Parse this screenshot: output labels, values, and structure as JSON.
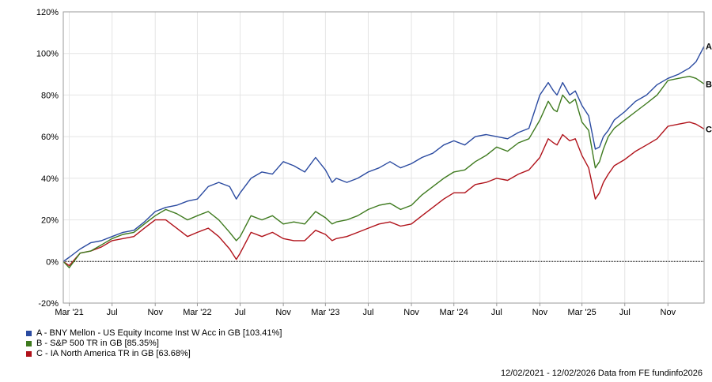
{
  "chart_data": {
    "type": "line",
    "xlabel": "",
    "ylabel": "",
    "x_range": [
      "2021-02-12",
      "2026-02-12"
    ],
    "ylim": [
      -20,
      120
    ],
    "y_ticks": [
      -20,
      0,
      20,
      40,
      60,
      80,
      100,
      120
    ],
    "y_tick_labels": [
      "-20%",
      "0%",
      "20%",
      "40%",
      "60%",
      "80%",
      "100%",
      "120%"
    ],
    "x_ticks": [
      {
        "date": "2021-03-01",
        "label": "Mar '21"
      },
      {
        "date": "2021-07-01",
        "label": "Jul"
      },
      {
        "date": "2021-11-01",
        "label": "Nov"
      },
      {
        "date": "2022-03-01",
        "label": "Mar '22"
      },
      {
        "date": "2022-07-01",
        "label": "Jul"
      },
      {
        "date": "2022-11-01",
        "label": "Nov"
      },
      {
        "date": "2023-03-01",
        "label": "Mar '23"
      },
      {
        "date": "2023-07-01",
        "label": "Jul"
      },
      {
        "date": "2023-11-01",
        "label": "Nov"
      },
      {
        "date": "2024-03-01",
        "label": "Mar '24"
      },
      {
        "date": "2024-07-01",
        "label": "Jul"
      },
      {
        "date": "2024-11-01",
        "label": "Nov"
      },
      {
        "date": "2025-03-01",
        "label": "Mar '25"
      },
      {
        "date": "2025-07-01",
        "label": "Jul"
      },
      {
        "date": "2025-11-01",
        "label": "Nov"
      }
    ],
    "grid": true,
    "zero_line": "dotted",
    "legend_position": "bottom-left",
    "series": [
      {
        "name": "A - BNY Mellon - US Equity Income Inst W Acc in GB [103.41%]",
        "end_label": "A",
        "color": "#2a4aa0",
        "points": [
          [
            "2021-02-12",
            0
          ],
          [
            "2021-03-01",
            2
          ],
          [
            "2021-04-01",
            6
          ],
          [
            "2021-05-01",
            9
          ],
          [
            "2021-06-01",
            10
          ],
          [
            "2021-07-01",
            12
          ],
          [
            "2021-08-01",
            14
          ],
          [
            "2021-09-01",
            15
          ],
          [
            "2021-10-01",
            19
          ],
          [
            "2021-11-01",
            24
          ],
          [
            "2021-12-01",
            26
          ],
          [
            "2022-01-01",
            27
          ],
          [
            "2022-02-01",
            29
          ],
          [
            "2022-03-01",
            30
          ],
          [
            "2022-04-01",
            36
          ],
          [
            "2022-05-01",
            38
          ],
          [
            "2022-06-01",
            36
          ],
          [
            "2022-06-20",
            30
          ],
          [
            "2022-07-01",
            33
          ],
          [
            "2022-08-01",
            40
          ],
          [
            "2022-09-01",
            43
          ],
          [
            "2022-10-01",
            42
          ],
          [
            "2022-11-01",
            48
          ],
          [
            "2022-12-01",
            46
          ],
          [
            "2023-01-01",
            43
          ],
          [
            "2023-02-01",
            50
          ],
          [
            "2023-03-01",
            44
          ],
          [
            "2023-03-20",
            38
          ],
          [
            "2023-04-01",
            40
          ],
          [
            "2023-05-01",
            38
          ],
          [
            "2023-06-01",
            40
          ],
          [
            "2023-07-01",
            43
          ],
          [
            "2023-08-01",
            45
          ],
          [
            "2023-09-01",
            48
          ],
          [
            "2023-10-01",
            45
          ],
          [
            "2023-11-01",
            47
          ],
          [
            "2023-12-01",
            50
          ],
          [
            "2024-01-01",
            52
          ],
          [
            "2024-02-01",
            56
          ],
          [
            "2024-03-01",
            58
          ],
          [
            "2024-04-01",
            56
          ],
          [
            "2024-05-01",
            60
          ],
          [
            "2024-06-01",
            61
          ],
          [
            "2024-07-01",
            60
          ],
          [
            "2024-08-01",
            59
          ],
          [
            "2024-09-01",
            62
          ],
          [
            "2024-10-01",
            64
          ],
          [
            "2024-11-01",
            80
          ],
          [
            "2024-11-25",
            86
          ],
          [
            "2024-12-10",
            82
          ],
          [
            "2024-12-20",
            80
          ],
          [
            "2025-01-05",
            86
          ],
          [
            "2025-01-25",
            80
          ],
          [
            "2025-02-10",
            82
          ],
          [
            "2025-03-01",
            75
          ],
          [
            "2025-03-20",
            70
          ],
          [
            "2025-04-08",
            54
          ],
          [
            "2025-04-20",
            55
          ],
          [
            "2025-05-01",
            60
          ],
          [
            "2025-05-15",
            63
          ],
          [
            "2025-06-01",
            68
          ],
          [
            "2025-07-01",
            72
          ],
          [
            "2025-08-01",
            77
          ],
          [
            "2025-09-01",
            80
          ],
          [
            "2025-10-01",
            85
          ],
          [
            "2025-11-01",
            88
          ],
          [
            "2025-12-01",
            90
          ],
          [
            "2026-01-01",
            93
          ],
          [
            "2026-01-20",
            96
          ],
          [
            "2026-02-12",
            103.41
          ]
        ]
      },
      {
        "name": "B - S&P 500 TR in GB [85.35%]",
        "end_label": "B",
        "color": "#3e7a1e",
        "points": [
          [
            "2021-02-12",
            0
          ],
          [
            "2021-03-01",
            -3
          ],
          [
            "2021-04-01",
            4
          ],
          [
            "2021-05-01",
            5
          ],
          [
            "2021-06-01",
            8
          ],
          [
            "2021-07-01",
            11
          ],
          [
            "2021-08-01",
            13
          ],
          [
            "2021-09-01",
            14
          ],
          [
            "2021-10-01",
            18
          ],
          [
            "2021-11-01",
            22
          ],
          [
            "2021-12-01",
            25
          ],
          [
            "2022-01-01",
            23
          ],
          [
            "2022-02-01",
            20
          ],
          [
            "2022-03-01",
            22
          ],
          [
            "2022-04-01",
            24
          ],
          [
            "2022-05-01",
            20
          ],
          [
            "2022-06-01",
            14
          ],
          [
            "2022-06-20",
            10
          ],
          [
            "2022-07-01",
            12
          ],
          [
            "2022-08-01",
            22
          ],
          [
            "2022-09-01",
            20
          ],
          [
            "2022-10-01",
            22
          ],
          [
            "2022-11-01",
            18
          ],
          [
            "2022-12-01",
            19
          ],
          [
            "2023-01-01",
            18
          ],
          [
            "2023-02-01",
            24
          ],
          [
            "2023-03-01",
            21
          ],
          [
            "2023-03-20",
            18
          ],
          [
            "2023-04-01",
            19
          ],
          [
            "2023-05-01",
            20
          ],
          [
            "2023-06-01",
            22
          ],
          [
            "2023-07-01",
            25
          ],
          [
            "2023-08-01",
            27
          ],
          [
            "2023-09-01",
            28
          ],
          [
            "2023-10-01",
            25
          ],
          [
            "2023-11-01",
            27
          ],
          [
            "2023-12-01",
            32
          ],
          [
            "2024-01-01",
            36
          ],
          [
            "2024-02-01",
            40
          ],
          [
            "2024-03-01",
            43
          ],
          [
            "2024-04-01",
            44
          ],
          [
            "2024-05-01",
            48
          ],
          [
            "2024-06-01",
            51
          ],
          [
            "2024-07-01",
            55
          ],
          [
            "2024-08-01",
            53
          ],
          [
            "2024-09-01",
            57
          ],
          [
            "2024-10-01",
            59
          ],
          [
            "2024-11-01",
            68
          ],
          [
            "2024-11-25",
            77
          ],
          [
            "2024-12-10",
            73
          ],
          [
            "2024-12-20",
            72
          ],
          [
            "2025-01-05",
            80
          ],
          [
            "2025-01-25",
            76
          ],
          [
            "2025-02-10",
            78
          ],
          [
            "2025-03-01",
            67
          ],
          [
            "2025-03-20",
            63
          ],
          [
            "2025-04-08",
            45
          ],
          [
            "2025-04-20",
            48
          ],
          [
            "2025-05-01",
            54
          ],
          [
            "2025-05-15",
            60
          ],
          [
            "2025-06-01",
            64
          ],
          [
            "2025-07-01",
            68
          ],
          [
            "2025-08-01",
            72
          ],
          [
            "2025-09-01",
            76
          ],
          [
            "2025-10-01",
            80
          ],
          [
            "2025-11-01",
            87
          ],
          [
            "2025-12-01",
            88
          ],
          [
            "2026-01-01",
            89
          ],
          [
            "2026-01-20",
            88
          ],
          [
            "2026-02-12",
            85.35
          ]
        ]
      },
      {
        "name": "C - IA North America TR in GB [63.68%]",
        "end_label": "C",
        "color": "#b0121a",
        "points": [
          [
            "2021-02-12",
            0
          ],
          [
            "2021-03-01",
            -2
          ],
          [
            "2021-04-01",
            4
          ],
          [
            "2021-05-01",
            5
          ],
          [
            "2021-06-01",
            7
          ],
          [
            "2021-07-01",
            10
          ],
          [
            "2021-08-01",
            11
          ],
          [
            "2021-09-01",
            12
          ],
          [
            "2021-10-01",
            16
          ],
          [
            "2021-11-01",
            20
          ],
          [
            "2021-12-01",
            20
          ],
          [
            "2022-01-01",
            16
          ],
          [
            "2022-02-01",
            12
          ],
          [
            "2022-03-01",
            14
          ],
          [
            "2022-04-01",
            16
          ],
          [
            "2022-05-01",
            12
          ],
          [
            "2022-06-01",
            6
          ],
          [
            "2022-06-20",
            1
          ],
          [
            "2022-07-01",
            4
          ],
          [
            "2022-08-01",
            14
          ],
          [
            "2022-09-01",
            12
          ],
          [
            "2022-10-01",
            14
          ],
          [
            "2022-11-01",
            11
          ],
          [
            "2022-12-01",
            10
          ],
          [
            "2023-01-01",
            10
          ],
          [
            "2023-02-01",
            15
          ],
          [
            "2023-03-01",
            13
          ],
          [
            "2023-03-20",
            10
          ],
          [
            "2023-04-01",
            11
          ],
          [
            "2023-05-01",
            12
          ],
          [
            "2023-06-01",
            14
          ],
          [
            "2023-07-01",
            16
          ],
          [
            "2023-08-01",
            18
          ],
          [
            "2023-09-01",
            19
          ],
          [
            "2023-10-01",
            17
          ],
          [
            "2023-11-01",
            18
          ],
          [
            "2023-12-01",
            22
          ],
          [
            "2024-01-01",
            26
          ],
          [
            "2024-02-01",
            30
          ],
          [
            "2024-03-01",
            33
          ],
          [
            "2024-04-01",
            33
          ],
          [
            "2024-05-01",
            37
          ],
          [
            "2024-06-01",
            38
          ],
          [
            "2024-07-01",
            40
          ],
          [
            "2024-08-01",
            39
          ],
          [
            "2024-09-01",
            42
          ],
          [
            "2024-10-01",
            44
          ],
          [
            "2024-11-01",
            50
          ],
          [
            "2024-11-25",
            59
          ],
          [
            "2024-12-10",
            57
          ],
          [
            "2024-12-20",
            56
          ],
          [
            "2025-01-05",
            61
          ],
          [
            "2025-01-25",
            58
          ],
          [
            "2025-02-10",
            59
          ],
          [
            "2025-03-01",
            51
          ],
          [
            "2025-03-20",
            45
          ],
          [
            "2025-04-08",
            30
          ],
          [
            "2025-04-20",
            33
          ],
          [
            "2025-05-01",
            38
          ],
          [
            "2025-05-15",
            42
          ],
          [
            "2025-06-01",
            46
          ],
          [
            "2025-07-01",
            49
          ],
          [
            "2025-08-01",
            53
          ],
          [
            "2025-09-01",
            56
          ],
          [
            "2025-10-01",
            59
          ],
          [
            "2025-11-01",
            65
          ],
          [
            "2025-12-01",
            66
          ],
          [
            "2026-01-01",
            67
          ],
          [
            "2026-01-20",
            66
          ],
          [
            "2026-02-12",
            63.68
          ]
        ]
      }
    ]
  },
  "footer": {
    "date_range": "12/02/2021 - 12/02/2026",
    "source": "Data from FE fundinfo2026"
  }
}
